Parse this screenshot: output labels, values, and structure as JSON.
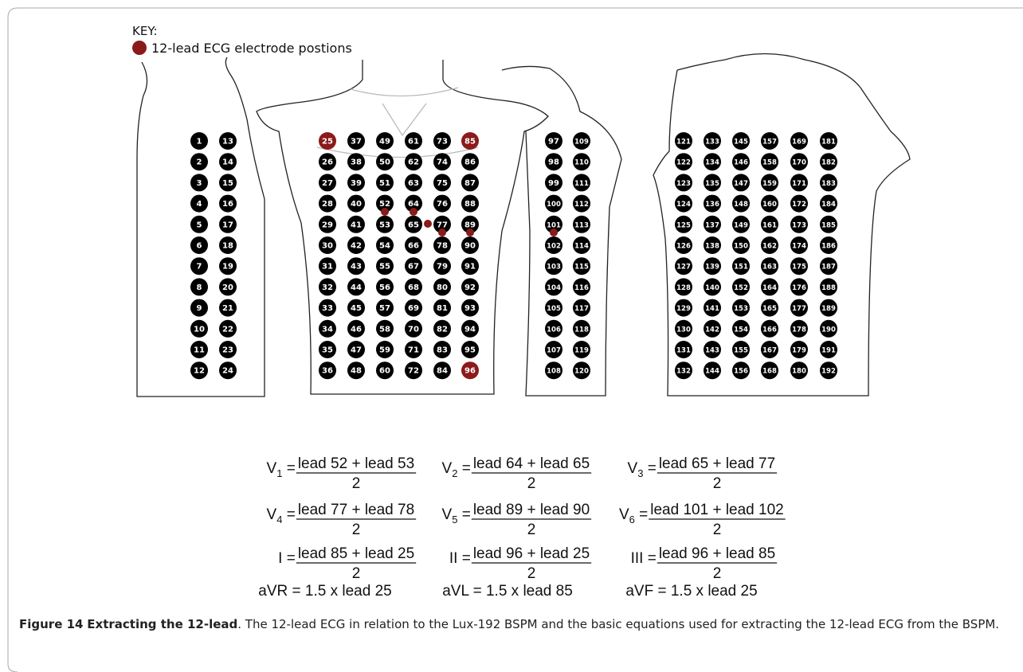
{
  "key": {
    "title": "KEY:",
    "legend": "12-lead ECG electrode postions"
  },
  "electrodes": {
    "columns": [
      [
        1,
        2,
        3,
        4,
        5,
        6,
        7,
        8,
        9,
        10,
        11,
        12
      ],
      [
        13,
        14,
        15,
        16,
        17,
        18,
        19,
        20,
        21,
        22,
        23,
        24
      ],
      [
        25,
        26,
        27,
        28,
        29,
        30,
        31,
        32,
        33,
        34,
        35,
        36
      ],
      [
        37,
        38,
        39,
        40,
        41,
        42,
        43,
        44,
        45,
        46,
        47,
        48
      ],
      [
        49,
        50,
        51,
        52,
        53,
        54,
        55,
        56,
        57,
        58,
        59,
        60
      ],
      [
        61,
        62,
        63,
        64,
        65,
        66,
        67,
        68,
        69,
        70,
        71,
        72
      ],
      [
        73,
        74,
        75,
        76,
        77,
        78,
        79,
        80,
        81,
        82,
        83,
        84
      ],
      [
        85,
        86,
        87,
        88,
        89,
        90,
        91,
        92,
        93,
        94,
        95,
        96
      ],
      [
        97,
        98,
        99,
        100,
        101,
        102,
        103,
        104,
        105,
        106,
        107,
        108
      ],
      [
        109,
        110,
        111,
        112,
        113,
        114,
        115,
        116,
        117,
        118,
        119,
        120
      ],
      [
        121,
        122,
        123,
        124,
        125,
        126,
        127,
        128,
        129,
        130,
        131,
        132
      ],
      [
        133,
        134,
        135,
        136,
        137,
        138,
        139,
        140,
        141,
        142,
        143,
        144
      ],
      [
        145,
        146,
        147,
        148,
        149,
        150,
        151,
        152,
        153,
        154,
        155,
        156
      ],
      [
        157,
        158,
        159,
        160,
        161,
        162,
        163,
        164,
        165,
        166,
        167,
        168
      ],
      [
        169,
        170,
        171,
        172,
        173,
        174,
        175,
        176,
        177,
        178,
        179,
        180
      ],
      [
        181,
        182,
        183,
        184,
        185,
        186,
        187,
        188,
        189,
        190,
        191,
        192
      ]
    ],
    "highlighted": [
      25,
      85,
      96
    ],
    "color": "#000000",
    "highlight_color": "#8b1a1a"
  },
  "equations": [
    {
      "lhs": "V",
      "sub": "1",
      "eq": " = ",
      "numerator": "lead 52 + lead 53",
      "denominator": "2"
    },
    {
      "lhs": "V",
      "sub": "2",
      "eq": " = ",
      "numerator": "lead 64 + lead 65",
      "denominator": "2"
    },
    {
      "lhs": "V",
      "sub": "3",
      "eq": " = ",
      "numerator": "lead 65 + lead 77",
      "denominator": "2"
    },
    {
      "lhs": "V",
      "sub": "4",
      "eq": " = ",
      "numerator": "lead 77 + lead 78",
      "denominator": "2"
    },
    {
      "lhs": "V",
      "sub": "5",
      "eq": " = ",
      "numerator": "lead 89 + lead 90",
      "denominator": "2"
    },
    {
      "lhs": "V",
      "sub": "6",
      "eq": " = ",
      "numerator": "lead 101 + lead 102",
      "denominator": "2"
    },
    {
      "lhs": "I",
      "eq": " = ",
      "numerator": "lead 85 + lead 25",
      "denominator": "2"
    },
    {
      "lhs": "II",
      "eq": " = ",
      "numerator": "lead 96 + lead 25",
      "denominator": "2"
    },
    {
      "lhs": "III",
      "eq": " = ",
      "numerator": "lead 96 + lead 85",
      "denominator": "2"
    }
  ],
  "augmented": [
    "aVR = 1.5 x lead 25",
    "aVL = 1.5 x lead 85",
    "aVF = 1.5 x lead 25"
  ],
  "caption": {
    "label": "Figure 14",
    "title": "Extracting the 12-lead",
    "text": ". The 12-lead ECG in relation to the Lux-192 BSPM and the basic equations used for extracting the 12-lead ECG from the BSPM."
  }
}
